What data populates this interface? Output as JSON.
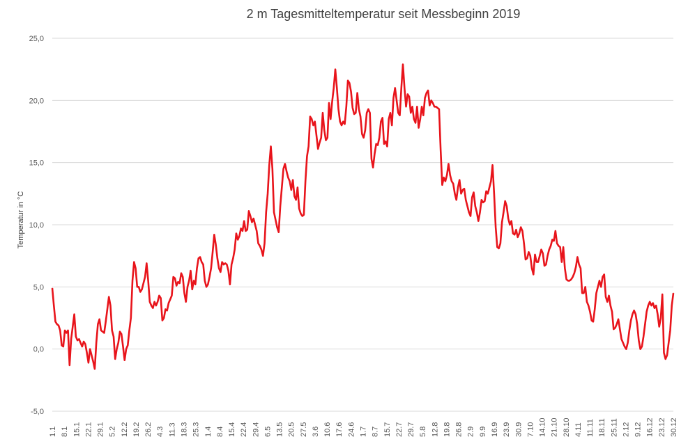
{
  "chart_data": {
    "type": "line",
    "title": "2 m Tagesmitteltemperatur seit Messbeginn  2019",
    "xlabel": "",
    "ylabel": "Temperatur in °C",
    "ylim": [
      -5,
      25
    ],
    "yticks": [
      "-5,0",
      "0,0",
      "5,0",
      "10,0",
      "15,0",
      "20,0",
      "25,0"
    ],
    "grid": true,
    "legend": "none",
    "series_color": "#e8141b",
    "x_tick_labels": [
      "1.1",
      "8.1",
      "15.1",
      "22.1",
      "29.1",
      "5.2",
      "12.2",
      "19.2",
      "26.2",
      "4.3",
      "11.3",
      "18.3",
      "25.3",
      "1.4",
      "8.4",
      "15.4",
      "22.4",
      "29.4",
      "6.5",
      "13.5",
      "20.5",
      "27.5",
      "3.6",
      "10.6",
      "17.6",
      "24.6",
      "1.7",
      "8.7",
      "15.7",
      "22.7",
      "29.7",
      "5.8",
      "12.8",
      "19.8",
      "26.8",
      "2.9",
      "9.9",
      "16.9",
      "23.9",
      "30.9",
      "7.10",
      "14.10",
      "21.10",
      "28.10",
      "4.11",
      "11.11",
      "18.11",
      "25.11",
      "2.12",
      "9.12",
      "16.12",
      "23.12",
      "30.12"
    ],
    "series": [
      {
        "values": [
          4.9,
          3.5,
          2.2,
          2.0,
          1.9,
          1.5,
          0.3,
          0.2,
          1.5,
          1.3,
          1.5,
          -1.3,
          0.8,
          1.8,
          2.8,
          1.0,
          0.7,
          0.8,
          0.5,
          0.2,
          0.6,
          0.4,
          -0.3,
          -1.1,
          0.0,
          -0.5,
          -1.0,
          -1.6,
          0.5,
          2.0,
          2.4,
          1.5,
          1.4,
          1.3,
          2.2,
          3.2,
          4.2,
          3.5,
          1.5,
          1.0,
          -0.8,
          0.0,
          0.5,
          1.4,
          1.2,
          0.2,
          -0.9,
          0.0,
          0.3,
          1.5,
          2.5,
          5.5,
          7.0,
          6.5,
          5.0,
          5.0,
          4.6,
          4.8,
          5.3,
          5.8,
          6.9,
          5.5,
          3.8,
          3.5,
          3.3,
          3.8,
          3.5,
          3.8,
          4.3,
          4.1,
          2.3,
          2.5,
          3.2,
          3.1,
          3.7,
          4.0,
          4.3,
          5.8,
          5.7,
          5.1,
          5.4,
          5.3,
          6.1,
          5.8,
          4.5,
          3.8,
          5.0,
          5.5,
          6.3,
          4.8,
          5.5,
          5.2,
          6.5,
          7.3,
          7.4,
          7.0,
          6.8,
          5.5,
          5.0,
          5.2,
          5.8,
          6.5,
          7.8,
          9.2,
          8.4,
          7.3,
          6.5,
          6.2,
          7.0,
          6.8,
          6.9,
          6.8,
          6.3,
          5.2,
          6.8,
          7.3,
          8.0,
          9.3,
          8.8,
          9.1,
          9.7,
          9.5,
          10.3,
          9.5,
          9.6,
          11.1,
          10.7,
          10.2,
          10.5,
          10.0,
          9.5,
          8.5,
          8.3,
          8.0,
          7.5,
          8.5,
          11.0,
          12.5,
          14.8,
          16.3,
          14.5,
          11.0,
          10.4,
          9.8,
          9.4,
          11.5,
          13.0,
          14.5,
          14.9,
          14.3,
          13.8,
          13.5,
          12.8,
          13.6,
          12.3,
          12.0,
          13.0,
          11.3,
          10.9,
          10.7,
          10.8,
          13.5,
          15.5,
          16.3,
          18.7,
          18.5,
          18.0,
          18.3,
          17.2,
          16.1,
          16.6,
          17.0,
          19.0,
          17.6,
          16.8,
          17.0,
          19.8,
          18.5,
          19.9,
          21.0,
          22.5,
          21.0,
          19.3,
          18.3,
          18.0,
          18.3,
          18.1,
          19.5,
          21.6,
          21.4,
          20.7,
          19.4,
          18.9,
          19.0,
          20.6,
          19.3,
          18.7,
          17.3,
          17.0,
          17.6,
          19.0,
          19.3,
          19.0,
          15.3,
          14.6,
          15.7,
          16.5,
          16.4,
          17.0,
          18.3,
          18.6,
          16.5,
          16.7,
          16.3,
          18.5,
          19.0,
          18.0,
          20.2,
          21.0,
          20.0,
          19.0,
          18.8,
          21.0,
          22.9,
          21.0,
          19.5,
          20.5,
          20.3,
          19.0,
          19.5,
          18.5,
          18.2,
          19.5,
          17.8,
          18.5,
          19.5,
          18.8,
          20.2,
          20.6,
          20.8,
          19.6,
          20.0,
          19.8,
          19.5,
          19.5,
          19.4,
          19.3,
          16.0,
          13.2,
          13.8,
          13.5,
          14.0,
          14.9,
          14.0,
          13.5,
          13.3,
          12.5,
          12.0,
          13.0,
          13.6,
          12.5,
          12.8,
          12.9,
          12.0,
          11.5,
          11.0,
          10.7,
          12.2,
          12.6,
          11.5,
          11.0,
          10.3,
          11.0,
          12.0,
          11.8,
          11.9,
          12.7,
          12.5,
          13.0,
          13.5,
          14.8,
          12.5,
          9.8,
          8.2,
          8.1,
          8.5,
          10.2,
          11.0,
          11.9,
          11.5,
          10.5,
          10.0,
          10.3,
          9.3,
          9.2,
          9.6,
          9.0,
          9.3,
          9.8,
          9.5,
          8.5,
          7.2,
          7.3,
          7.8,
          7.5,
          6.5,
          6.0,
          7.6,
          7.0,
          7.0,
          7.5,
          8.0,
          7.7,
          6.7,
          6.8,
          7.5,
          8.0,
          8.3,
          8.8,
          8.7,
          9.5,
          8.5,
          8.3,
          8.2,
          7.0,
          8.2,
          6.5,
          5.6,
          5.5,
          5.5,
          5.6,
          5.8,
          6.1,
          6.6,
          7.4,
          6.8,
          6.5,
          4.5,
          4.5,
          5.0,
          3.8,
          3.5,
          3.0,
          2.3,
          2.2,
          3.2,
          4.5,
          5.0,
          5.5,
          5.0,
          5.8,
          6.0,
          4.2,
          3.8,
          4.3,
          3.5,
          3.0,
          1.6,
          1.7,
          2.0,
          2.4,
          1.6,
          0.8,
          0.5,
          0.2,
          0.0,
          0.5,
          1.5,
          2.3,
          2.8,
          3.1,
          2.8,
          2.0,
          0.7,
          0.0,
          0.2,
          1.0,
          2.0,
          3.0,
          3.5,
          3.8,
          3.5,
          3.7,
          3.3,
          3.5,
          2.8,
          1.8,
          2.5,
          4.4,
          -0.3,
          -0.8,
          -0.5,
          0.5,
          1.5,
          3.5,
          4.5
        ]
      }
    ]
  }
}
